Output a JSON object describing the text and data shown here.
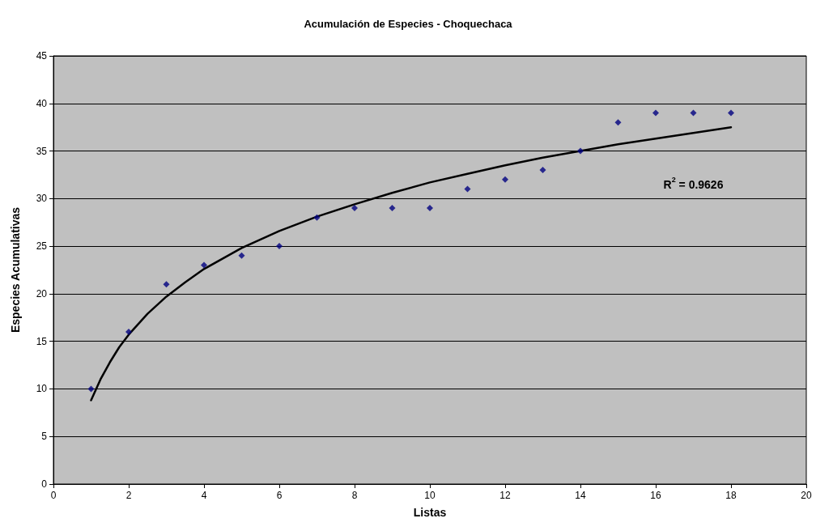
{
  "chart_data": {
    "type": "scatter",
    "title": "Acumulación de Especies - Choquechaca",
    "xlabel": "Listas",
    "ylabel": "Especies Acumulativas",
    "x": [
      1,
      2,
      3,
      4,
      5,
      6,
      7,
      8,
      9,
      10,
      11,
      12,
      13,
      14,
      15,
      16,
      17,
      18
    ],
    "series": [
      {
        "color": "#000080",
        "marker": "diamond",
        "values": [
          10,
          16,
          21,
          23,
          24,
          25,
          28,
          29,
          29,
          29,
          31,
          32,
          33,
          35,
          38,
          39,
          39,
          39
        ]
      },
      {
        "type": "line",
        "color": "#000000",
        "marker": "none",
        "line_style": "solid",
        "x": [
          1,
          1.25,
          1.5,
          1.75,
          2,
          2.5,
          3,
          3.5,
          4,
          5,
          6,
          7,
          8,
          9,
          10,
          11,
          12,
          13,
          14,
          15,
          16,
          17,
          18
        ],
        "values": [
          8.8,
          11.0,
          12.8,
          14.4,
          15.7,
          17.9,
          19.7,
          21.2,
          22.6,
          24.8,
          26.6,
          28.1,
          29.4,
          30.6,
          31.7,
          32.6,
          33.5,
          34.3,
          35.0,
          35.7,
          36.3,
          36.9,
          37.5
        ]
      }
    ],
    "annotations": [
      "R$^{2}$ = 0.9626"
    ],
    "xlim": [
      0,
      20
    ],
    "xticks": [
      0,
      2,
      4,
      6,
      8,
      10,
      12,
      14,
      16,
      18,
      20
    ],
    "ylim": [
      0,
      45
    ],
    "yticks": [
      0,
      5,
      10,
      15,
      20,
      25,
      30,
      35,
      40,
      45
    ],
    "grid": "y"
  }
}
